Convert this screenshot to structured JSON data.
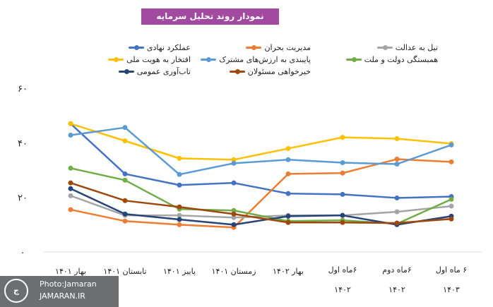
{
  "chart_data": {
    "type": "line",
    "title": "نمودار روند تحلیل سرمایه اجتماعی",
    "categories": [
      "بهار ۱۴۰۱",
      "تابستان ۱۴۰۱",
      "پاییز ۱۴۰۱",
      "زمستان ۱۴۰۱",
      "بهار ۱۴۰۲",
      "۶ماه اول ۱۴۰۲",
      "۶ماه دوم ۱۴۰۲",
      "۶ ماه اول ۱۴۰۳"
    ],
    "ylim": [
      0,
      60
    ],
    "yticks": [
      "۰",
      "۲۰",
      "۴۰",
      "۶۰"
    ],
    "yticks_values": [
      0,
      20,
      40,
      60
    ],
    "grid": false,
    "legend": "top",
    "series": [
      {
        "name": "عملکرد نهادی",
        "color": "#4472c4",
        "values": [
          47,
          28.6,
          24.5,
          25.3,
          21.4,
          21.1,
          19.8,
          20.3
        ]
      },
      {
        "name": "مدیریت بحران",
        "color": "#ed7d31",
        "values": [
          15.5,
          11.3,
          10,
          9,
          28.6,
          28.9,
          34,
          33
        ]
      },
      {
        "name": "نیل به عدالت",
        "color": "#a5a5a5",
        "values": [
          20.6,
          13.4,
          13.4,
          12.6,
          13.4,
          13.4,
          14.7,
          16.8
        ]
      },
      {
        "name": "افتخار به هویت ملی",
        "color": "#ffc000",
        "values": [
          47,
          40.7,
          34.3,
          33.8,
          37.9,
          42,
          41.5,
          39.7
        ]
      },
      {
        "name": "پایبندی به ارزش‌های مشترک",
        "color": "#5b9bd5",
        "values": [
          42.8,
          45.6,
          28.4,
          32.5,
          33.8,
          32.7,
          32.2,
          39.2
        ]
      },
      {
        "name": "همبستگی دولت و ملت",
        "color": "#70ad47",
        "values": [
          30.7,
          26.3,
          15.7,
          15.2,
          11.3,
          11.6,
          10.3,
          19.3
        ]
      },
      {
        "name": "تاب‌آوری عمومی",
        "color": "#264478",
        "values": [
          23.2,
          13.9,
          11.9,
          10,
          13.1,
          13.4,
          10,
          13.1
        ]
      },
      {
        "name": "خیرخواهی مسئولان",
        "color": "#9e480e",
        "values": [
          25.3,
          18.8,
          16.5,
          13.9,
          10.8,
          10.8,
          10.6,
          12.1
        ]
      }
    ]
  },
  "watermark": {
    "line1": "Photo:Jamaran",
    "line2": "JAMARAN.IR",
    "logo_text": "جماران"
  }
}
